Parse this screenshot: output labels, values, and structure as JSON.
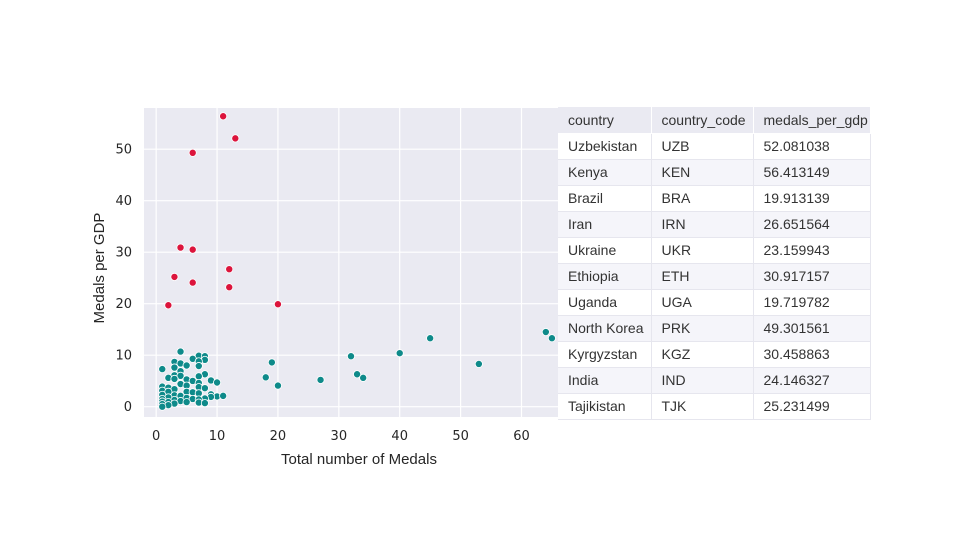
{
  "chart_data": {
    "type": "scatter",
    "xlabel": "Total number of Medals",
    "ylabel": "Medals per GDP",
    "xlim": [
      -2,
      66
    ],
    "ylim": [
      -2,
      58
    ],
    "xticks": [
      0,
      10,
      20,
      30,
      40,
      50,
      60
    ],
    "yticks": [
      0,
      10,
      20,
      30,
      40,
      50
    ],
    "grid": true,
    "colors": {
      "background": "#eaeaf2",
      "grid": "#ffffff",
      "normal": "#0e8a8a",
      "highlight": "#dc143c"
    },
    "series": [
      {
        "color": "#dc143c",
        "points": [
          [
            11,
            56.4
          ],
          [
            13,
            52.1
          ],
          [
            6,
            49.3
          ],
          [
            4,
            30.9
          ],
          [
            6,
            30.5
          ],
          [
            12,
            26.7
          ],
          [
            3,
            25.2
          ],
          [
            6,
            24.1
          ],
          [
            12,
            23.2
          ],
          [
            20,
            19.9
          ],
          [
            2,
            19.7
          ]
        ]
      },
      {
        "color": "#0e8a8a",
        "points": [
          [
            64,
            14.5
          ],
          [
            65,
            13.3
          ],
          [
            45,
            13.3
          ],
          [
            40,
            10.4
          ],
          [
            32,
            9.8
          ],
          [
            53,
            8.3
          ],
          [
            19,
            8.6
          ],
          [
            33,
            6.3
          ],
          [
            34,
            5.6
          ],
          [
            18,
            5.7
          ],
          [
            27,
            5.2
          ],
          [
            20,
            4.1
          ],
          [
            4,
            10.7
          ],
          [
            7,
            9.9
          ],
          [
            8,
            9.8
          ],
          [
            6,
            9.3
          ],
          [
            8,
            9.1
          ],
          [
            7,
            8.8
          ],
          [
            3,
            8.7
          ],
          [
            4,
            8.4
          ],
          [
            5,
            8.0
          ],
          [
            7,
            7.9
          ],
          [
            3,
            7.6
          ],
          [
            1,
            7.3
          ],
          [
            4,
            6.9
          ],
          [
            8,
            6.3
          ],
          [
            3,
            6.1
          ],
          [
            4,
            6.0
          ],
          [
            7,
            5.9
          ],
          [
            9,
            5.1
          ],
          [
            2,
            5.6
          ],
          [
            3,
            5.4
          ],
          [
            5,
            5.3
          ],
          [
            6,
            5.0
          ],
          [
            10,
            4.7
          ],
          [
            7,
            4.6
          ],
          [
            4,
            4.4
          ],
          [
            5,
            4.1
          ],
          [
            1,
            3.9
          ],
          [
            2,
            3.7
          ],
          [
            7,
            3.8
          ],
          [
            8,
            3.6
          ],
          [
            3,
            3.4
          ],
          [
            1,
            3.1
          ],
          [
            2,
            2.9
          ],
          [
            5,
            2.9
          ],
          [
            6,
            2.8
          ],
          [
            7,
            2.6
          ],
          [
            9,
            2.4
          ],
          [
            1,
            2.3
          ],
          [
            3,
            2.2
          ],
          [
            4,
            2.1
          ],
          [
            10,
            2.0
          ],
          [
            11,
            2.1
          ],
          [
            9,
            1.9
          ],
          [
            2,
            1.8
          ],
          [
            5,
            1.7
          ],
          [
            8,
            1.6
          ],
          [
            1,
            1.5
          ],
          [
            6,
            1.5
          ],
          [
            7,
            1.4
          ],
          [
            3,
            1.3
          ],
          [
            4,
            1.1
          ],
          [
            1,
            1.0
          ],
          [
            2,
            0.9
          ],
          [
            5,
            0.9
          ],
          [
            7,
            0.8
          ],
          [
            1,
            0.5
          ],
          [
            3,
            0.6
          ],
          [
            8,
            0.7
          ],
          [
            2,
            0.3
          ],
          [
            1,
            0.0
          ]
        ]
      }
    ],
    "table": {
      "columns": [
        "country",
        "country_code",
        "medals_per_gdp"
      ],
      "rows": [
        [
          "Uzbekistan",
          "UZB",
          "52.081038"
        ],
        [
          "Kenya",
          "KEN",
          "56.413149"
        ],
        [
          "Brazil",
          "BRA",
          "19.913139"
        ],
        [
          "Iran",
          "IRN",
          "26.651564"
        ],
        [
          "Ukraine",
          "UKR",
          "23.159943"
        ],
        [
          "Ethiopia",
          "ETH",
          "30.917157"
        ],
        [
          "Uganda",
          "UGA",
          "19.719782"
        ],
        [
          "North Korea",
          "PRK",
          "49.301561"
        ],
        [
          "Kyrgyzstan",
          "KGZ",
          "30.458863"
        ],
        [
          "India",
          "IND",
          "24.146327"
        ],
        [
          "Tajikistan",
          "TJK",
          "25.231499"
        ]
      ]
    }
  }
}
